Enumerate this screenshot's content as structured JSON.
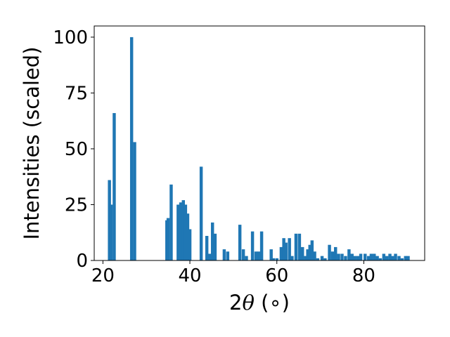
{
  "chart_data": {
    "type": "bar",
    "title": "",
    "xlabel": "2θ (∘)",
    "xlabel_parts": {
      "prefix": "2",
      "theta": "θ",
      "suffix": " (∘)"
    },
    "ylabel": "Intensities (scaled)",
    "xlim": [
      18,
      94
    ],
    "ylim": [
      0,
      105
    ],
    "xticks": [
      20,
      40,
      60,
      80
    ],
    "yticks": [
      0,
      25,
      50,
      75,
      100
    ],
    "grid": false,
    "legend": "none",
    "bar_color": "#1f77b4",
    "bar_width": 0.72,
    "x": [
      21.5,
      21.9,
      22.6,
      26.6,
      27.3,
      34.7,
      35.0,
      35.7,
      37.3,
      37.9,
      38.5,
      39.0,
      39.5,
      40.0,
      42.6,
      43.9,
      44.5,
      45.2,
      45.8,
      47.9,
      48.7,
      51.5,
      52.3,
      53.0,
      54.4,
      55.2,
      55.8,
      56.5,
      58.7,
      59.2,
      60.0,
      61.0,
      61.6,
      62.1,
      62.9,
      63.5,
      64.4,
      65.2,
      65.9,
      66.6,
      67.1,
      67.6,
      68.1,
      68.7,
      69.4,
      70.4,
      71.1,
      72.1,
      72.8,
      73.5,
      74.2,
      75.0,
      75.8,
      76.6,
      77.3,
      77.9,
      78.6,
      79.3,
      80.3,
      81.1,
      81.7,
      82.4,
      83.1,
      83.8,
      84.6,
      85.3,
      86.0,
      86.6,
      87.3,
      88.1,
      88.8,
      89.6,
      90.2
    ],
    "values": [
      36,
      25,
      66,
      100,
      53,
      18,
      19,
      34,
      25,
      26,
      27,
      25,
      21,
      14,
      42,
      11,
      3,
      17,
      12,
      5,
      4,
      16,
      5,
      2,
      13,
      4,
      4,
      13,
      5,
      1,
      1,
      6,
      10,
      8,
      10,
      2,
      12,
      12,
      6,
      2,
      5,
      7,
      9,
      4,
      1,
      2,
      1,
      7,
      4,
      6,
      3,
      3,
      2,
      5,
      3,
      2,
      2,
      3,
      3,
      2,
      3,
      3,
      2,
      1,
      3,
      2,
      3,
      2,
      3,
      2,
      1,
      2,
      2
    ]
  }
}
